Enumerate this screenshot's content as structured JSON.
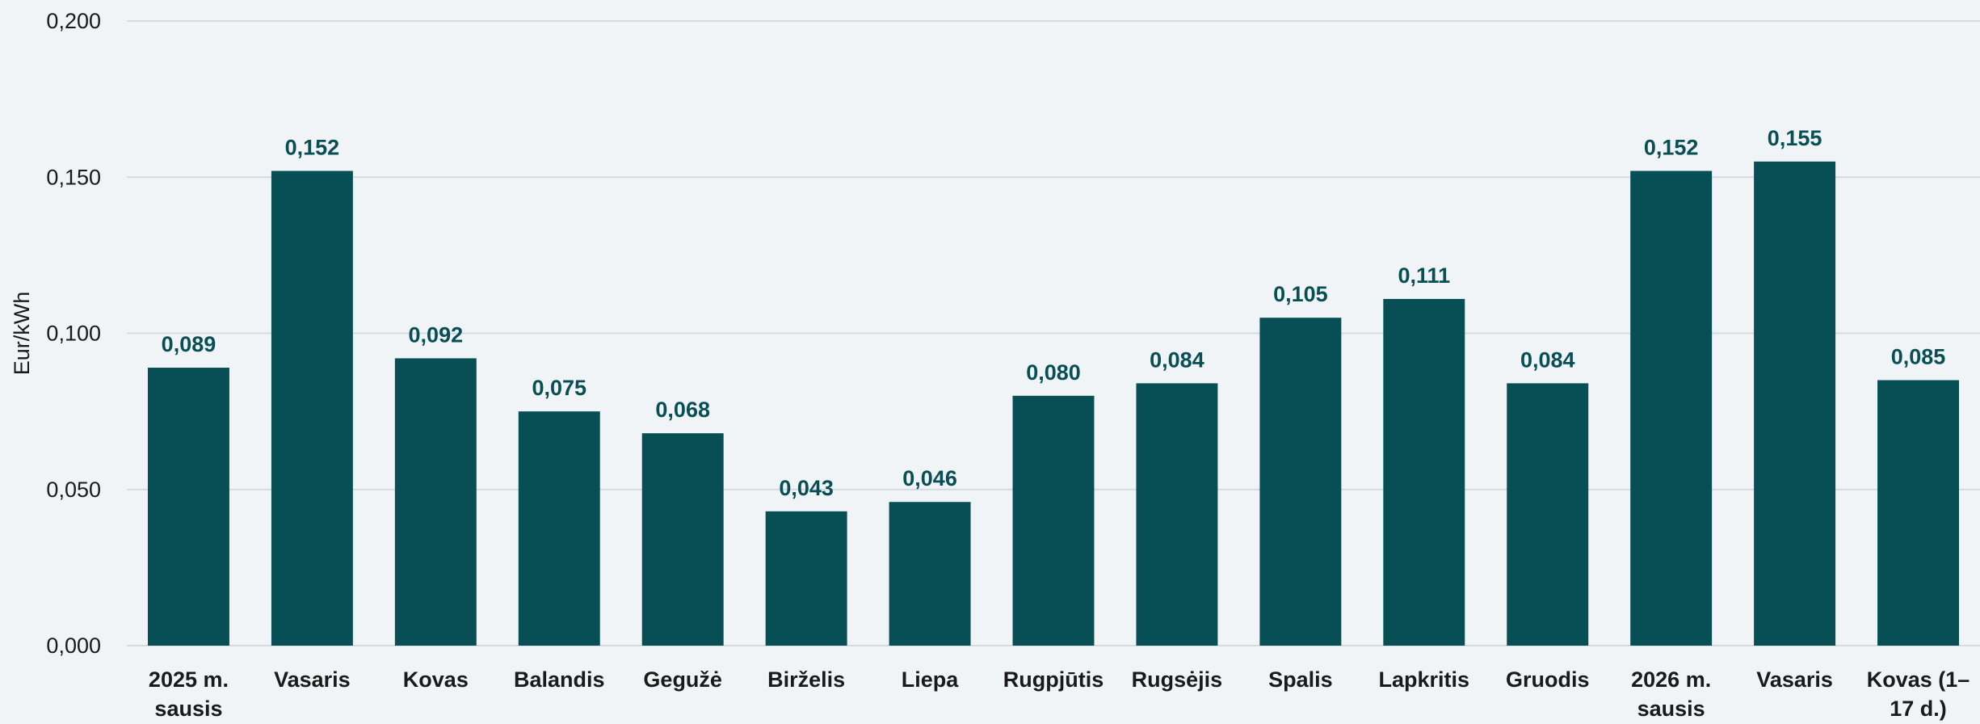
{
  "chart_data": {
    "type": "bar",
    "title": "",
    "xlabel": "",
    "ylabel": "Eur/kWh",
    "ylim": [
      0,
      0.2
    ],
    "yticks": [
      "0,000",
      "0,050",
      "0,100",
      "0,150",
      "0,200"
    ],
    "ytick_values": [
      0,
      0.05,
      0.1,
      0.15,
      0.2
    ],
    "grid": true,
    "bar_color": "#084f55",
    "label_color": "#084f55",
    "categories": [
      [
        "2025 m.",
        "sausis"
      ],
      [
        "Vasaris"
      ],
      [
        "Kovas"
      ],
      [
        "Balandis"
      ],
      [
        "Gegužė"
      ],
      [
        "Birželis"
      ],
      [
        "Liepa"
      ],
      [
        "Rugpjūtis"
      ],
      [
        "Rugsėjis"
      ],
      [
        "Spalis"
      ],
      [
        "Lapkritis"
      ],
      [
        "Gruodis"
      ],
      [
        "2026 m.",
        "sausis"
      ],
      [
        "Vasaris"
      ],
      [
        "Kovas (1–",
        "17 d.)"
      ]
    ],
    "values": [
      0.089,
      0.152,
      0.092,
      0.075,
      0.068,
      0.043,
      0.046,
      0.08,
      0.084,
      0.105,
      0.111,
      0.084,
      0.152,
      0.155,
      0.085
    ],
    "value_labels": [
      "0,089",
      "0,152",
      "0,092",
      "0,075",
      "0,068",
      "0,043",
      "0,046",
      "0,080",
      "0,084",
      "0,105",
      "0,111",
      "0,084",
      "0,152",
      "0,155",
      "0,085"
    ]
  }
}
